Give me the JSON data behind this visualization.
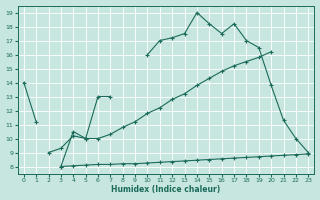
{
  "xlabel": "Humidex (Indice chaleur)",
  "bg_color": "#c8e6e0",
  "line_color": "#1a6b5a",
  "grid_color": "#b0d8d0",
  "xlim": [
    -0.5,
    23.5
  ],
  "ylim": [
    7.5,
    19.5
  ],
  "xticks": [
    0,
    1,
    2,
    3,
    4,
    5,
    6,
    7,
    8,
    9,
    10,
    11,
    12,
    13,
    14,
    15,
    16,
    17,
    18,
    19,
    20,
    21,
    22,
    23
  ],
  "yticks": [
    8,
    9,
    10,
    11,
    12,
    13,
    14,
    15,
    16,
    17,
    18,
    19
  ],
  "line1_x": [
    0,
    1,
    3,
    4,
    5,
    6,
    7,
    10,
    11,
    12,
    13,
    14,
    15,
    16,
    17,
    18,
    19,
    20,
    21,
    22,
    23
  ],
  "line1_y": [
    14,
    11.2,
    8.0,
    10.5,
    10.0,
    13.0,
    13.0,
    16.0,
    17.0,
    17.2,
    17.5,
    19.0,
    18.2,
    17.5,
    18.2,
    17.0,
    16.5,
    13.8,
    11.3,
    10.0,
    9.0
  ],
  "line1_segments": [
    [
      0,
      1
    ],
    [
      3,
      7
    ],
    [
      10,
      23
    ]
  ],
  "line2_x": [
    2,
    3,
    4,
    5,
    6,
    7,
    8,
    9,
    10,
    11,
    12,
    13,
    14,
    15,
    16,
    17,
    18,
    19,
    20
  ],
  "line2_y": [
    9.0,
    9.3,
    10.2,
    10.0,
    10.0,
    10.3,
    10.8,
    11.2,
    11.8,
    12.2,
    12.8,
    13.2,
    13.8,
    14.3,
    14.8,
    15.2,
    15.5,
    15.8,
    16.2
  ],
  "line3_x": [
    3,
    4,
    5,
    6,
    7,
    8,
    9,
    10,
    11,
    12,
    13,
    14,
    15,
    16,
    17,
    18,
    19,
    20,
    21,
    22,
    23
  ],
  "line3_y": [
    8.0,
    8.05,
    8.1,
    8.15,
    8.15,
    8.2,
    8.2,
    8.25,
    8.3,
    8.35,
    8.4,
    8.45,
    8.5,
    8.55,
    8.6,
    8.65,
    8.7,
    8.75,
    8.8,
    8.85,
    8.9
  ]
}
